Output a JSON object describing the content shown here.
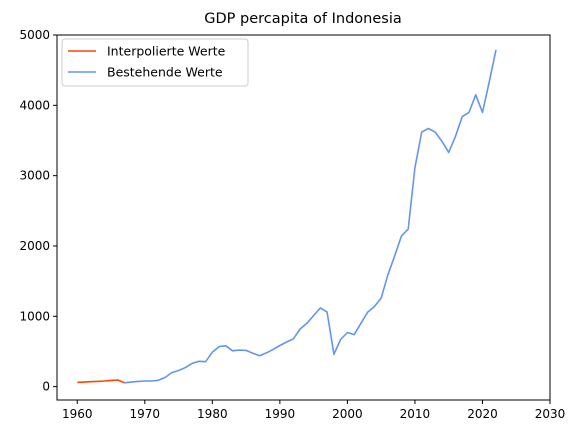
{
  "chart_data": {
    "type": "line",
    "title": "GDP percapita of Indonesia",
    "xlabel": "",
    "ylabel": "",
    "xlim": [
      1957,
      2030
    ],
    "ylim": [
      -190,
      5000
    ],
    "xticks": [
      1960,
      1970,
      1980,
      1990,
      2000,
      2010,
      2020,
      2030
    ],
    "yticks": [
      0,
      1000,
      2000,
      3000,
      4000,
      5000
    ],
    "grid": false,
    "legend_position": "top-left",
    "series": [
      {
        "name": "Interpolierte Werte",
        "color": "#ff4500",
        "x": [
          1960,
          1961,
          1962,
          1963,
          1964,
          1965,
          1966,
          1967
        ],
        "y": [
          60,
          65,
          70,
          75,
          80,
          88,
          95,
          55
        ]
      },
      {
        "name": "Bestehende Werte",
        "color": "#6495ed",
        "x": [
          1967,
          1968,
          1969,
          1970,
          1971,
          1972,
          1973,
          1974,
          1975,
          1976,
          1977,
          1978,
          1979,
          1980,
          1981,
          1982,
          1983,
          1984,
          1985,
          1986,
          1987,
          1988,
          1989,
          1990,
          1991,
          1992,
          1993,
          1994,
          1995,
          1996,
          1997,
          1998,
          1999,
          2000,
          2001,
          2002,
          2003,
          2004,
          2005,
          2006,
          2007,
          2008,
          2009,
          2010,
          2011,
          2012,
          2013,
          2014,
          2015,
          2016,
          2017,
          2018,
          2019,
          2020,
          2021,
          2022
        ],
        "y": [
          55,
          65,
          75,
          80,
          80,
          90,
          130,
          200,
          230,
          270,
          330,
          360,
          355,
          490,
          570,
          580,
          510,
          520,
          515,
          475,
          440,
          480,
          530,
          585,
          635,
          680,
          820,
          900,
          1010,
          1120,
          1060,
          460,
          670,
          770,
          740,
          900,
          1060,
          1140,
          1260,
          1590,
          1860,
          2140,
          2240,
          3110,
          3620,
          3670,
          3620,
          3490,
          3330,
          3560,
          3840,
          3900,
          4150,
          3900,
          4330,
          4790
        ]
      }
    ]
  }
}
